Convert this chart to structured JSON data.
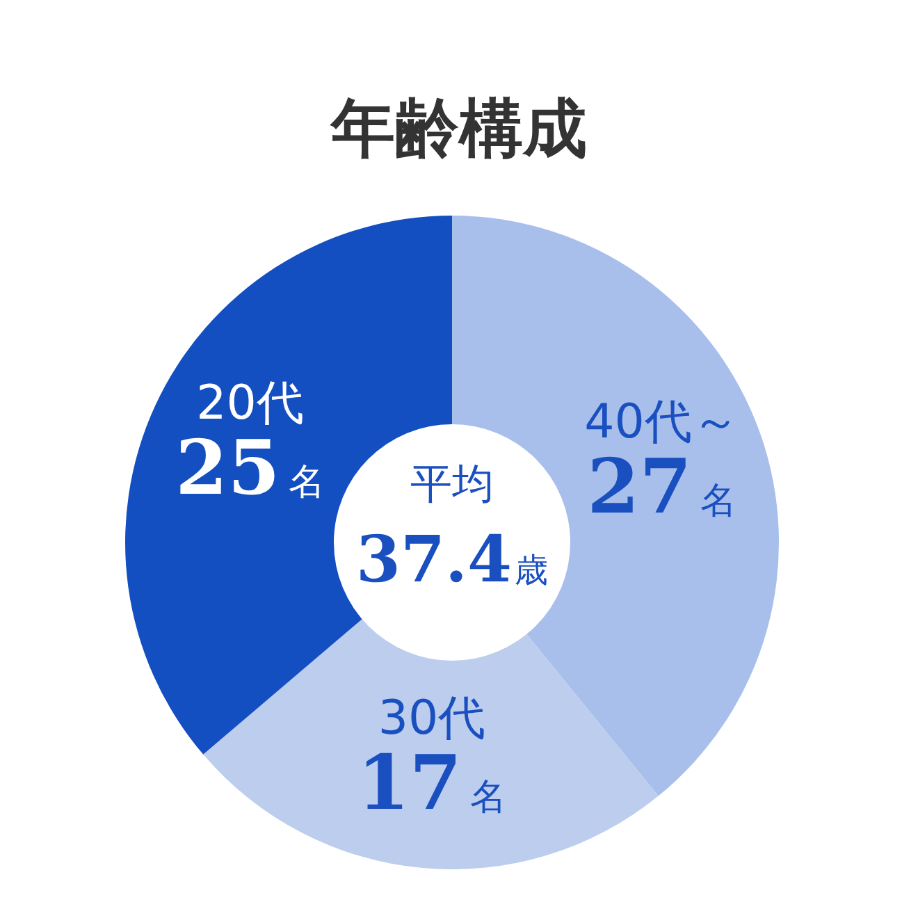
{
  "chart_data": {
    "type": "donut",
    "title": "年齢構成",
    "categories": [
      "40代～",
      "30代",
      "20代"
    ],
    "values": [
      27,
      17,
      25
    ],
    "value_labels": [
      "27名",
      "17名",
      "25名"
    ],
    "colors": [
      "#a8bfeb",
      "#bccdee",
      "#134fc1"
    ],
    "annotations": [
      "平均",
      "37.4歳"
    ]
  }
}
